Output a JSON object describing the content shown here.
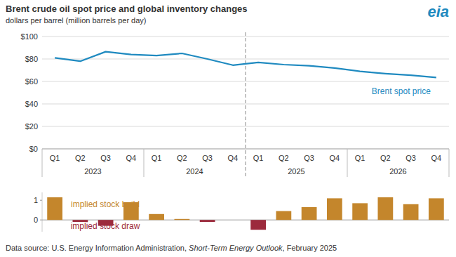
{
  "title": "Brent crude oil spot price and global inventory changes",
  "subtitle": "dollars per barrel (million barrels per day)",
  "logo": "eia",
  "source": [
    "Data source: U.S. Energy Information Administration, ",
    "Short-Term Energy Outlook",
    ", February 2025"
  ],
  "chart_data": [
    {
      "type": "line",
      "categories": [
        "Q1",
        "Q2",
        "Q3",
        "Q4",
        "Q1",
        "Q2",
        "Q3",
        "Q4",
        "Q1",
        "Q2",
        "Q3",
        "Q4",
        "Q1",
        "Q2",
        "Q3",
        "Q4"
      ],
      "group_labels": [
        "2023",
        "2024",
        "2025",
        "2026"
      ],
      "series": [
        {
          "name": "Brent spot price",
          "color": "#1f8ac0",
          "values": [
            81,
            78,
            86.5,
            84,
            83,
            85,
            80,
            74.5,
            77,
            75,
            74,
            72,
            69,
            67,
            65.5,
            63.5
          ]
        }
      ],
      "ylim": [
        0,
        100
      ],
      "yticks": [
        {
          "value": 0,
          "label": "$0"
        },
        {
          "value": 20,
          "label": "$20"
        },
        {
          "value": 40,
          "label": "$40"
        },
        {
          "value": 60,
          "label": "$60"
        },
        {
          "value": 80,
          "label": "$80"
        },
        {
          "value": 100,
          "label": "$100"
        }
      ],
      "grid": true
    },
    {
      "type": "bar",
      "categories": [
        null,
        null,
        null,
        null,
        null,
        null,
        null,
        null,
        null,
        null,
        null,
        null,
        null,
        null,
        null,
        null
      ],
      "values": [
        1.15,
        -0.1,
        -0.3,
        0.9,
        0.3,
        0.05,
        -0.1,
        0,
        -0.5,
        0.45,
        0.65,
        1.1,
        0.85,
        1.15,
        0.8,
        1.1
      ],
      "colors": [
        "#c4862c",
        "#9c2a3c",
        "#9c2a3c",
        "#c4862c",
        "#c4862c",
        "#c4862c",
        "#9c2a3c",
        "#c4862c",
        "#9c2a3c",
        "#c4862c",
        "#c4862c",
        "#c4862c",
        "#c4862c",
        "#c4862c",
        "#c4862c",
        "#c4862c"
      ],
      "annotations": [
        {
          "text": "implied stock build",
          "color": "#c4862c"
        },
        {
          "text": "implied stock draw",
          "color": "#9c2a3c"
        }
      ],
      "ylim": [
        -0.6,
        1.4
      ],
      "yticks": [
        0,
        1
      ],
      "grid": false
    }
  ]
}
